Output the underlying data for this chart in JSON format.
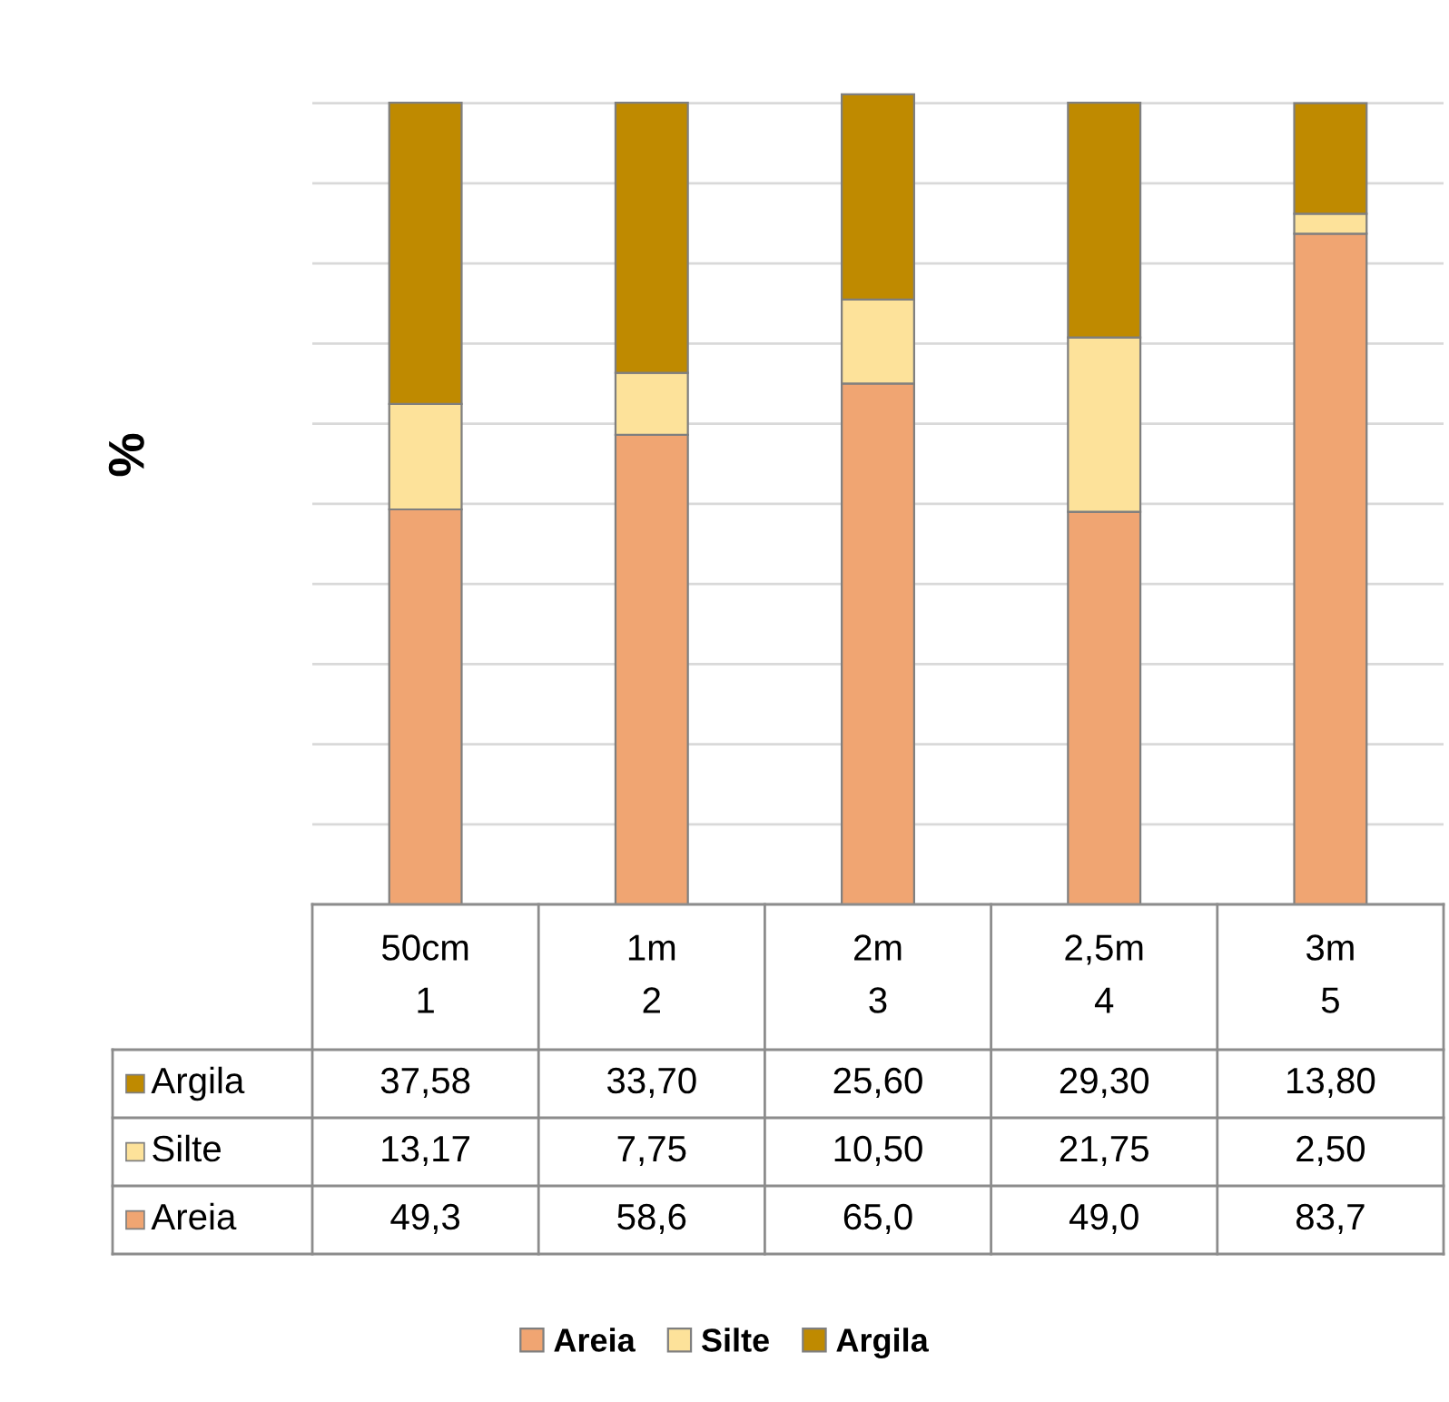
{
  "chart_data": {
    "type": "bar",
    "stacked": true,
    "ylabel": "%",
    "categories": [
      "50cm\n1",
      "1m\n2",
      "2m\n3",
      "2,5m\n4",
      "3m\n5"
    ],
    "series": [
      {
        "name": "Areia",
        "color": "#f0a572",
        "values": [
          49.3,
          58.6,
          65.0,
          49.0,
          83.7
        ],
        "value_labels": [
          "49,3",
          "58,6",
          "65,0",
          "49,0",
          "83,7"
        ]
      },
      {
        "name": "Silte",
        "color": "#fde29a",
        "values": [
          13.17,
          7.75,
          10.5,
          21.75,
          2.5
        ],
        "value_labels": [
          "13,17",
          "7,75",
          "10,50",
          "21,75",
          "2,50"
        ]
      },
      {
        "name": "Argila",
        "color": "#bf8a00",
        "values": [
          37.58,
          33.7,
          25.6,
          29.3,
          13.8
        ],
        "value_labels": [
          "37,58",
          "33,70",
          "25,60",
          "29,30",
          "13,80"
        ]
      }
    ],
    "ylim": [
      0,
      102
    ],
    "yticks": [
      {
        "value": 0,
        "label": null
      },
      {
        "value": 10,
        "label": null
      },
      {
        "value": 20,
        "label": null
      },
      {
        "value": 30,
        "label": null
      },
      {
        "value": 40,
        "label": null
      },
      {
        "value": 50,
        "label": null
      },
      {
        "value": 60,
        "label": null
      },
      {
        "value": 70,
        "label": null
      },
      {
        "value": 80,
        "label": null
      },
      {
        "value": 90,
        "label": null
      },
      {
        "value": 100,
        "label": null
      }
    ],
    "grid": "y",
    "legend": "bottom"
  }
}
